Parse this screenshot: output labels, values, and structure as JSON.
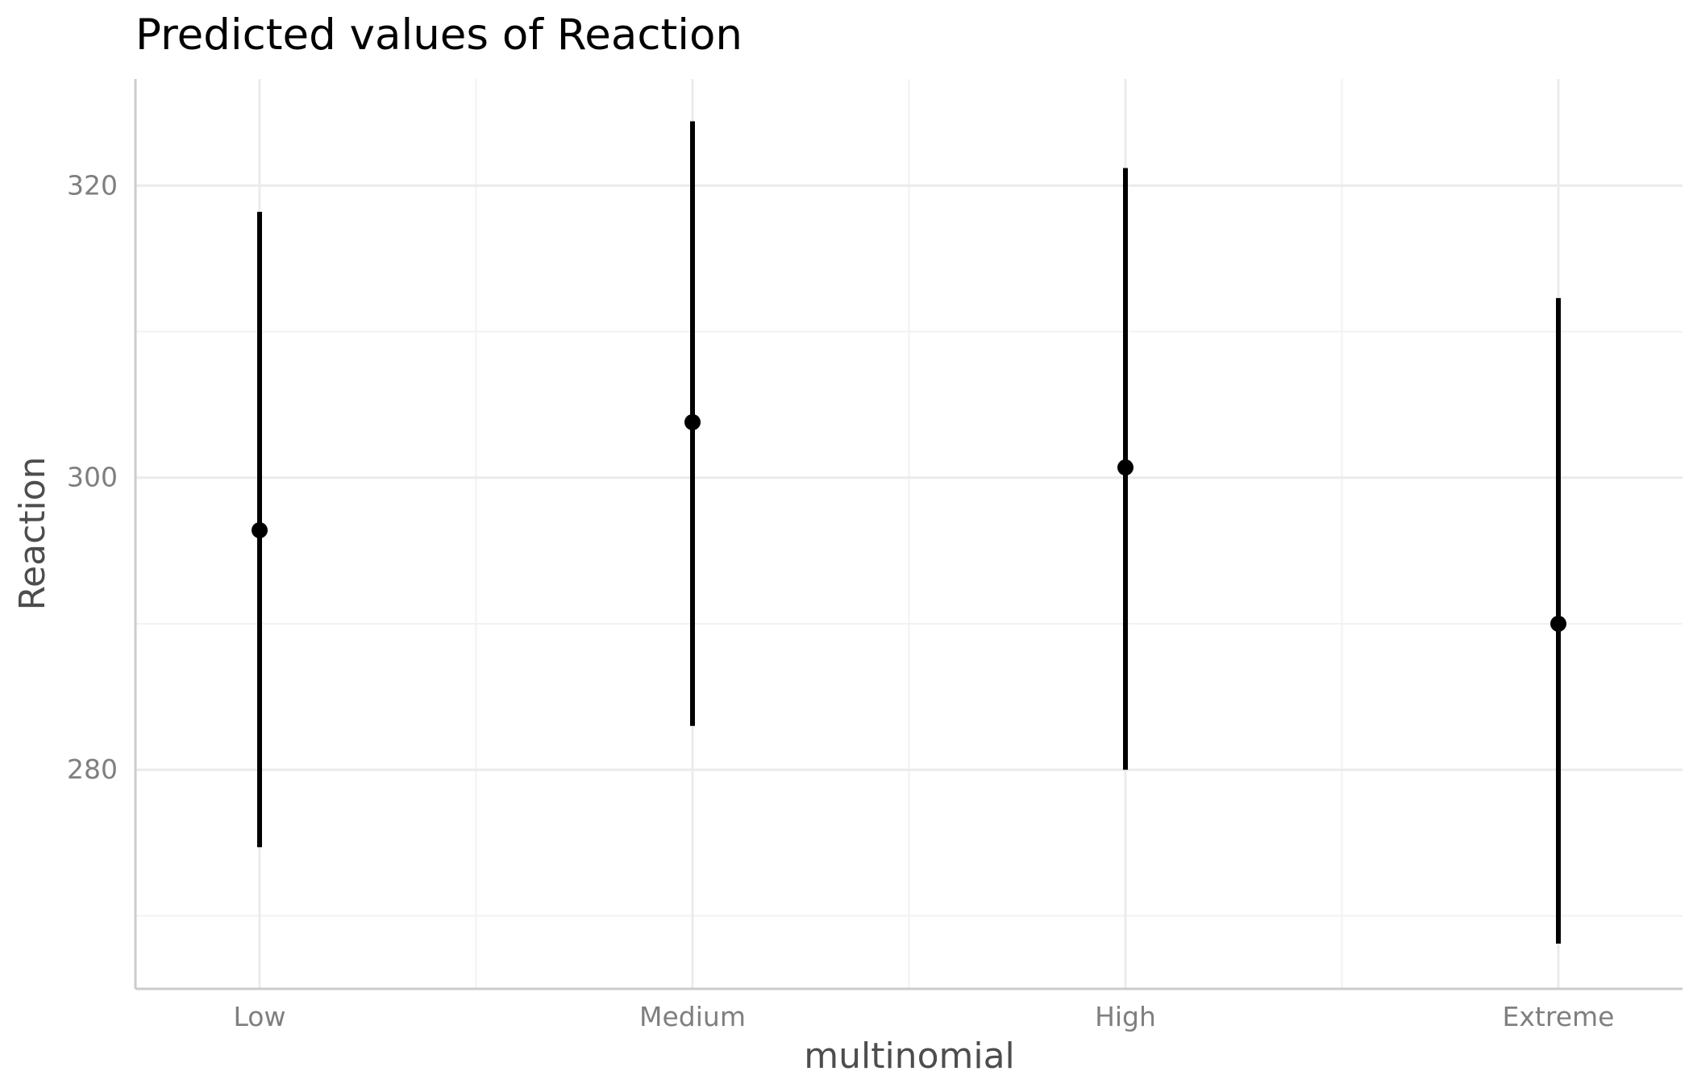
{
  "chart_data": {
    "type": "errorbar",
    "title": "Predicted values of Reaction",
    "xlabel": "multinomial",
    "ylabel": "Reaction",
    "categories": [
      "Low",
      "Medium",
      "High",
      "Extreme"
    ],
    "series": [
      {
        "values": [
          296.4,
          303.8,
          300.7,
          290.0
        ],
        "lower": [
          274.7,
          283.0,
          280.0,
          268.1
        ],
        "upper": [
          318.2,
          324.4,
          321.2,
          312.3
        ]
      }
    ],
    "ylim": [
      265,
      327.3
    ],
    "yticks": [
      280,
      300,
      320
    ],
    "yticks_minor": [
      270,
      290,
      310
    ],
    "grid": true,
    "legend": "none",
    "colors": {
      "mark": "#000000",
      "grid_major": "#ebebeb",
      "grid_minor": "#f2f2f2",
      "axis_line": "#cccccc"
    }
  }
}
